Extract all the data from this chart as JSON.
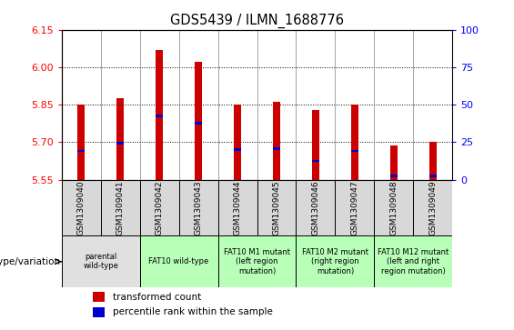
{
  "title": "GDS5439 / ILMN_1688776",
  "categories": [
    "GSM1309040",
    "GSM1309041",
    "GSM1309042",
    "GSM1309043",
    "GSM1309044",
    "GSM1309045",
    "GSM1309046",
    "GSM1309047",
    "GSM1309048",
    "GSM1309049"
  ],
  "bar_tops": [
    5.85,
    5.875,
    6.07,
    6.02,
    5.85,
    5.86,
    5.83,
    5.85,
    5.685,
    5.7
  ],
  "bar_bottoms": [
    5.55,
    5.55,
    5.55,
    5.55,
    5.55,
    5.55,
    5.55,
    5.55,
    5.55,
    5.55
  ],
  "blue_marker_y": [
    5.665,
    5.695,
    5.805,
    5.775,
    5.67,
    5.675,
    5.625,
    5.665,
    5.565,
    5.565
  ],
  "ylim_left": [
    5.55,
    6.15
  ],
  "ylim_right": [
    0,
    100
  ],
  "yticks_left": [
    5.55,
    5.7,
    5.85,
    6.0,
    6.15
  ],
  "yticks_right": [
    0,
    25,
    50,
    75,
    100
  ],
  "bar_color": "#cc0000",
  "blue_color": "#0000cc",
  "group_info": [
    {
      "cols": [
        0,
        1
      ],
      "color": "#e0e0e0",
      "label": "parental\nwild-type"
    },
    {
      "cols": [
        2,
        3
      ],
      "color": "#b8ffb8",
      "label": "FAT10 wild-type"
    },
    {
      "cols": [
        4,
        5
      ],
      "color": "#b8ffb8",
      "label": "FAT10 M1 mutant\n(left region\nmutation)"
    },
    {
      "cols": [
        6,
        7
      ],
      "color": "#b8ffb8",
      "label": "FAT10 M2 mutant\n(right region\nmutation)"
    },
    {
      "cols": [
        8,
        9
      ],
      "color": "#b8ffb8",
      "label": "FAT10 M12 mutant\n(left and right\nregion mutation)"
    }
  ],
  "legend_red": "transformed count",
  "legend_blue": "percentile rank within the sample",
  "bar_width": 0.18
}
